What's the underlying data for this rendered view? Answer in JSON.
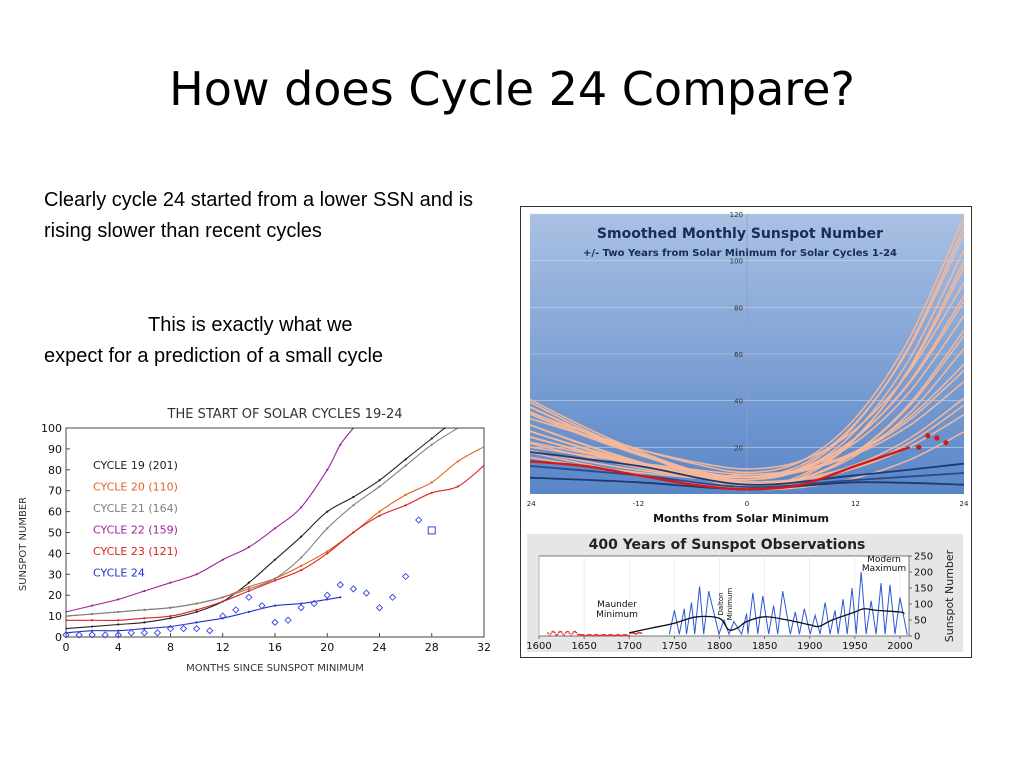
{
  "slide": {
    "title": "How does Cycle 24 Compare?",
    "para1": "Clearly cycle 24 started from a lower SSN and is rising slower than recent cycles",
    "para2_line1": "This is exactly what we",
    "para2_line2": "expect for a prediction of a small cycle"
  },
  "chart_data": [
    {
      "type": "line",
      "title": "THE START OF SOLAR CYCLES 19-24",
      "xlabel": "MONTHS SINCE SUNSPOT MINIMUM",
      "ylabel": "SUNSPOT NUMBER",
      "xlim": [
        0,
        32
      ],
      "ylim": [
        0,
        100
      ],
      "x_ticks": [
        "0",
        "4",
        "8",
        "12",
        "16",
        "20",
        "24",
        "28",
        "32"
      ],
      "y_ticks": [
        "0",
        "10",
        "20",
        "30",
        "40",
        "50",
        "60",
        "70",
        "80",
        "90",
        "100"
      ],
      "legend": [
        "CYCLE 19 (201)",
        "CYCLE 20 (110)",
        "CYCLE 21 (164)",
        "CYCLE 22 (159)",
        "CYCLE 23 (121)",
        "CYCLE 24"
      ],
      "series": [
        {
          "name": "CYCLE 19 (201)",
          "color": "#222222",
          "x": [
            0,
            2,
            4,
            6,
            8,
            10,
            12,
            14,
            16,
            18,
            20,
            22,
            24,
            26,
            28,
            29
          ],
          "y": [
            4,
            5,
            6,
            7,
            9,
            12,
            17,
            26,
            37,
            48,
            60,
            67,
            75,
            85,
            95,
            100
          ]
        },
        {
          "name": "CYCLE 20 (110)",
          "color": "#e0641e",
          "x": [
            0,
            2,
            4,
            6,
            8,
            10,
            12,
            14,
            16,
            18,
            20,
            22,
            24,
            26,
            28,
            30,
            32
          ],
          "y": [
            10,
            11,
            12,
            13,
            14,
            16,
            19,
            24,
            28,
            34,
            41,
            50,
            60,
            68,
            74,
            84,
            91
          ]
        },
        {
          "name": "CYCLE 21 (164)",
          "color": "#808080",
          "x": [
            0,
            2,
            4,
            6,
            8,
            10,
            12,
            14,
            16,
            18,
            20,
            22,
            24,
            26,
            28,
            30
          ],
          "y": [
            10,
            11,
            12,
            13,
            14,
            16,
            19,
            23,
            28,
            38,
            52,
            63,
            72,
            82,
            92,
            100
          ]
        },
        {
          "name": "CYCLE 22 (159)",
          "color": "#a020a0",
          "x": [
            0,
            2,
            4,
            6,
            8,
            10,
            12,
            14,
            16,
            18,
            20,
            21,
            22
          ],
          "y": [
            12,
            15,
            18,
            22,
            26,
            30,
            37,
            43,
            52,
            62,
            80,
            92,
            100
          ]
        },
        {
          "name": "CYCLE 23 (121)",
          "color": "#dd2222",
          "x": [
            0,
            2,
            4,
            6,
            8,
            10,
            12,
            14,
            16,
            18,
            20,
            22,
            24,
            26,
            28,
            30,
            32
          ],
          "y": [
            8,
            8,
            8,
            9,
            10,
            13,
            17,
            22,
            27,
            32,
            40,
            50,
            58,
            63,
            69,
            72,
            82
          ]
        },
        {
          "name": "CYCLE 24",
          "color": "#2233cc",
          "x": [
            0,
            2,
            4,
            6,
            8,
            10,
            12,
            14,
            16,
            18,
            20,
            21
          ],
          "y": [
            2,
            3,
            3,
            4,
            5,
            7,
            9,
            12,
            15,
            16,
            18,
            19
          ]
        }
      ],
      "diamonds": {
        "x": [
          0,
          1,
          2,
          3,
          4,
          5,
          6,
          7,
          8,
          9,
          10,
          11,
          12,
          13,
          14,
          15,
          16,
          17,
          18,
          19,
          20,
          21,
          22,
          23,
          24,
          25,
          26,
          27
        ],
        "y": [
          1,
          1,
          1,
          1,
          1,
          2,
          2,
          2,
          4,
          4,
          4,
          3,
          10,
          13,
          19,
          15,
          7,
          8,
          14,
          16,
          20,
          25,
          23,
          21,
          14,
          19,
          29,
          56
        ]
      },
      "square_marker": {
        "x": 28,
        "y": 51
      }
    },
    {
      "type": "line",
      "title": "Smoothed Monthly Sunspot Number",
      "subtitle": "+/- Two Years from Solar Minimum for Solar Cycles 1-24",
      "xlabel": "Months from Solar Minimum",
      "xlim": [
        -24,
        24
      ],
      "ylim": [
        0,
        120
      ],
      "x_ticks": [
        "-24",
        "-12",
        "0",
        "12",
        "24"
      ],
      "y_ticks": [
        "20",
        "40",
        "60",
        "80",
        "100",
        "120"
      ],
      "band_cycles_count": 20,
      "highlight_series": {
        "name": "",
        "color": "#d11a1a",
        "x": [
          -24,
          -18,
          -12,
          -6,
          0,
          6,
          12,
          18
        ],
        "y": [
          14,
          12,
          8,
          4,
          2,
          4,
          12,
          20
        ]
      },
      "dark_series": [
        {
          "color": "#1e3a70",
          "x": [
            -24,
            -12,
            0,
            12,
            24
          ],
          "y": [
            18,
            12,
            4,
            8,
            13
          ]
        },
        {
          "color": "#2a4a8a",
          "x": [
            -24,
            -12,
            0,
            12,
            24
          ],
          "y": [
            12,
            8,
            3,
            6,
            9
          ]
        },
        {
          "color": "#1e3a70",
          "x": [
            -24,
            -12,
            0,
            12,
            24
          ],
          "y": [
            7,
            5,
            2,
            5,
            4
          ]
        }
      ],
      "red_dots": {
        "x": [
          19,
          20,
          21,
          22
        ],
        "y": [
          20,
          25,
          24,
          22
        ]
      }
    },
    {
      "type": "line",
      "title": "400 Years of Sunspot Observations",
      "ylabel": "Sunspot Number",
      "xlim": [
        1600,
        2010
      ],
      "ylim": [
        0,
        250
      ],
      "x_ticks": [
        "1600",
        "1650",
        "1700",
        "1750",
        "1800",
        "1850",
        "1900",
        "1950",
        "2000"
      ],
      "y_ticks": [
        "0",
        "50",
        "100",
        "150",
        "200",
        "250"
      ],
      "annotations": [
        "Maunder Minimum",
        "Dalton Minimum",
        "Modern Maximum"
      ],
      "cycle_peaks": [
        [
          1750,
          80
        ],
        [
          1761,
          85
        ],
        [
          1769,
          105
        ],
        [
          1778,
          155
        ],
        [
          1788,
          140
        ],
        [
          1805,
          50
        ],
        [
          1816,
          45
        ],
        [
          1830,
          70
        ],
        [
          1837,
          135
        ],
        [
          1848,
          125
        ],
        [
          1860,
          95
        ],
        [
          1870,
          140
        ],
        [
          1884,
          75
        ],
        [
          1894,
          85
        ],
        [
          1906,
          65
        ],
        [
          1917,
          105
        ],
        [
          1928,
          80
        ],
        [
          1937,
          115
        ],
        [
          1947,
          150
        ],
        [
          1957,
          200
        ],
        [
          1968,
          110
        ],
        [
          1979,
          165
        ],
        [
          1989,
          160
        ],
        [
          2000,
          120
        ]
      ],
      "smoothed_trend": {
        "x": [
          1700,
          1725,
          1750,
          1775,
          1800,
          1810,
          1820,
          1830,
          1850,
          1875,
          1900,
          1910,
          1925,
          1950,
          1960,
          1975,
          2000,
          2005
        ],
        "y": [
          10,
          25,
          40,
          60,
          55,
          20,
          25,
          45,
          60,
          50,
          35,
          30,
          50,
          75,
          85,
          80,
          75,
          70
        ]
      }
    }
  ]
}
